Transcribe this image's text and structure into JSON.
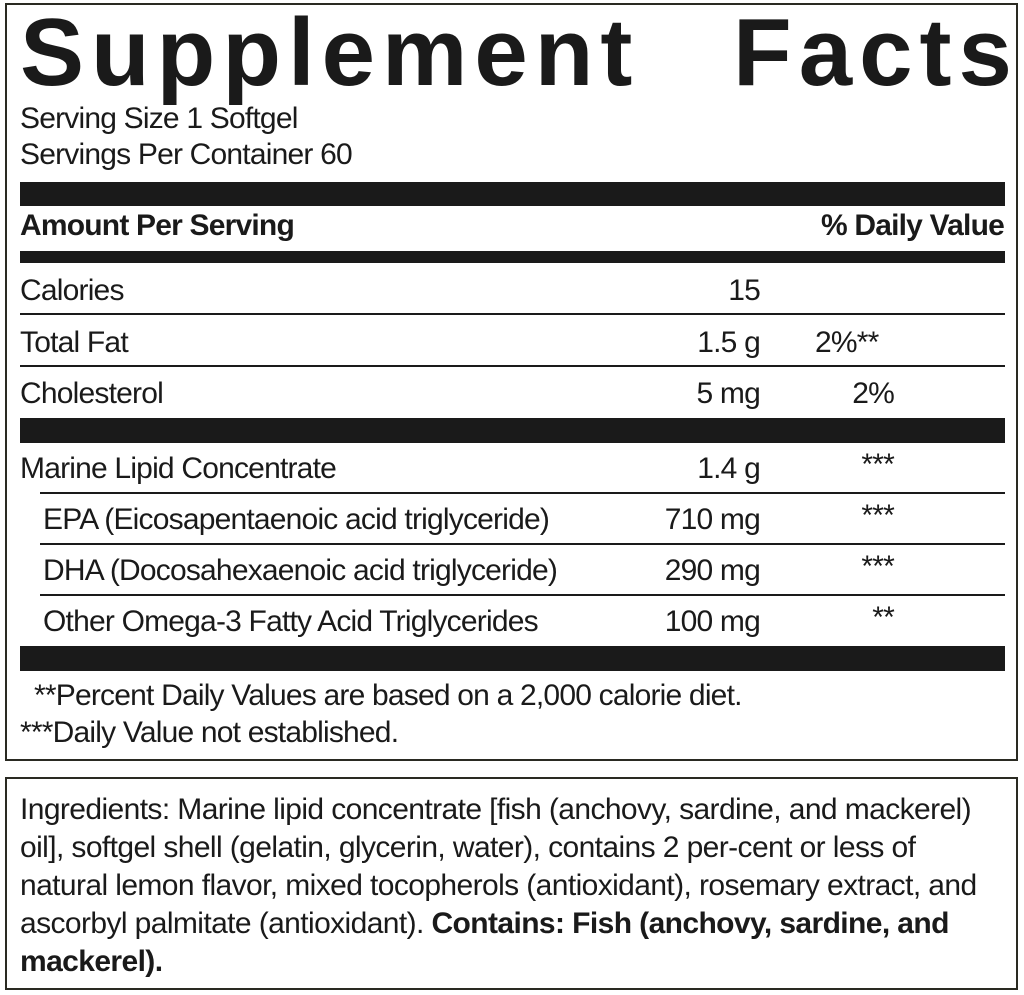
{
  "title": "Supplement Facts",
  "serving_size": "Serving Size 1 Softgel",
  "servings_per_container": "Servings Per Container 60",
  "header": {
    "amount": "Amount Per Serving",
    "dv": "% Daily Value"
  },
  "rows": [
    {
      "name": "Calories",
      "amount": "15",
      "dv": ""
    },
    {
      "name": "Total Fat",
      "amount": "1.5 g",
      "dv": "2%**"
    },
    {
      "name": "Cholesterol",
      "amount": "5 mg",
      "dv": "2%"
    },
    {
      "name": "Marine Lipid Concentrate",
      "amount": "1.4 g",
      "dv": "***"
    },
    {
      "name": "EPA (Eicosapentaenoic acid triglyceride)",
      "amount": "710 mg",
      "dv": "***"
    },
    {
      "name": "DHA (Docosahexaenoic acid triglyceride)",
      "amount": "290 mg",
      "dv": "***"
    },
    {
      "name": "Other Omega-3 Fatty Acid Triglycerides",
      "amount": "100 mg",
      "dv": "**"
    }
  ],
  "footnotes": [
    "**Percent Daily Values are based on a 2,000 calorie diet.",
    "***Daily Value not established."
  ],
  "ingredients": {
    "text": "Ingredients: Marine lipid concentrate [fish (anchovy, sardine, and mackerel) oil], softgel shell (gelatin, glycerin, water), contains 2 per-cent or less of natural lemon flavor, mixed tocopherols (antioxidant), rosemary extract, and ascorbyl palmitate (antioxidant).",
    "contains_label": "Contains:",
    "contains_text": "Fish (anchovy, sardine, and mackerel)."
  }
}
